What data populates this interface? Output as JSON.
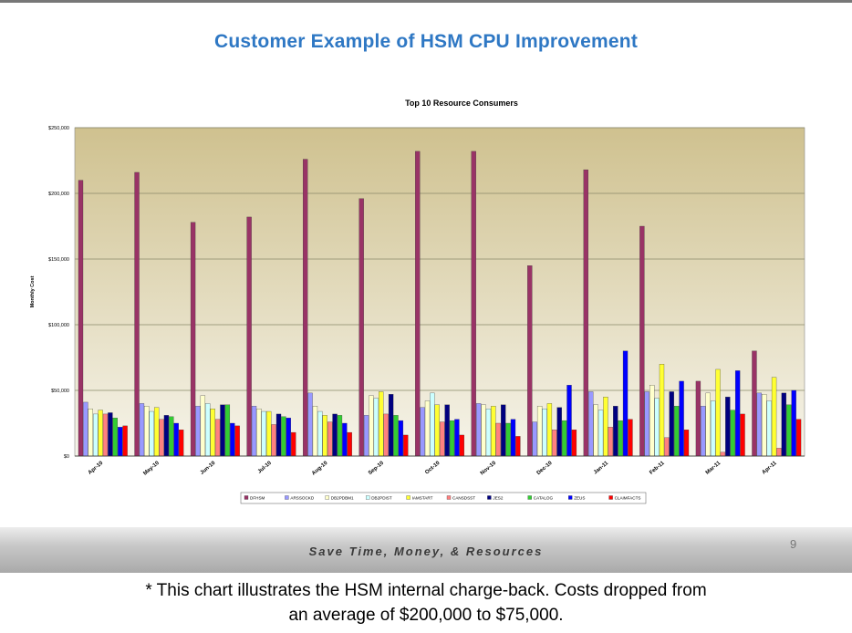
{
  "slide": {
    "title": "Customer Example of HSM CPU Improvement",
    "footer": "Save Time, Money, & Resources",
    "page_number": "9",
    "caption_line1": "* This chart illustrates the HSM internal charge-back. Costs dropped from",
    "caption_line2": "an average of $200,000 to $75,000."
  },
  "chart_data": {
    "type": "bar",
    "title": "Top 10 Resource Consumers",
    "xlabel": "",
    "ylabel": "Monthly Cost",
    "ylim": [
      0,
      250000
    ],
    "yticks": [
      "$0",
      "$50,000",
      "$100,000",
      "$150,000",
      "$200,000",
      "$250,000"
    ],
    "grid": true,
    "legend_position": "bottom",
    "categories": [
      "Apr-10",
      "May-10",
      "Jun-10",
      "Jul-10",
      "Aug-10",
      "Sep-10",
      "Oct-10",
      "Nov-10",
      "Dec-10",
      "Jan-11",
      "Feb-11",
      "Mar-11",
      "Apr-11"
    ],
    "series": [
      {
        "name": "DFHSM",
        "color": "#993366",
        "values": [
          210000,
          216000,
          178000,
          182000,
          226000,
          196000,
          232000,
          232000,
          145000,
          218000,
          175000,
          57000,
          80000
        ]
      },
      {
        "name": "ARSSOCKD",
        "color": "#9999ff",
        "values": [
          41000,
          40000,
          38000,
          38000,
          48000,
          31000,
          37000,
          40000,
          26000,
          49000,
          49000,
          38000,
          48000
        ]
      },
      {
        "name": "DB2PDBM1",
        "color": "#ffffcc",
        "values": [
          36000,
          38000,
          46000,
          36000,
          38000,
          46000,
          42000,
          39000,
          38000,
          39000,
          54000,
          48000,
          47000
        ]
      },
      {
        "name": "DB2PDIST",
        "color": "#ccffff",
        "values": [
          32000,
          34000,
          40000,
          34000,
          34000,
          44000,
          48000,
          36000,
          36000,
          35000,
          44000,
          42000,
          42000
        ]
      },
      {
        "name": "IAMSTART",
        "color": "#ffff33",
        "values": [
          35000,
          37000,
          36000,
          34000,
          31000,
          49000,
          39000,
          38000,
          40000,
          45000,
          70000,
          66000,
          60000
        ]
      },
      {
        "name": "CANSDSST",
        "color": "#ff8080",
        "values": [
          32000,
          28000,
          28000,
          24000,
          26000,
          32000,
          26000,
          25000,
          20000,
          22000,
          14000,
          3000,
          6000
        ]
      },
      {
        "name": "JES2",
        "color": "#000080",
        "values": [
          33000,
          31000,
          39000,
          32000,
          32000,
          47000,
          39000,
          39000,
          37000,
          38000,
          49000,
          45000,
          48000
        ]
      },
      {
        "name": "CATALOG",
        "color": "#33cc33",
        "values": [
          29000,
          30000,
          39000,
          30000,
          31000,
          31000,
          27000,
          25000,
          27000,
          27000,
          38000,
          35000,
          39000
        ]
      },
      {
        "name": "ZEUS",
        "color": "#0000ff",
        "values": [
          22000,
          25000,
          25000,
          29000,
          25000,
          27000,
          28000,
          28000,
          54000,
          80000,
          57000,
          65000,
          50000
        ]
      },
      {
        "name": "CLAIMFACTS",
        "color": "#ff0000",
        "values": [
          23000,
          20000,
          23000,
          18000,
          18000,
          16000,
          16000,
          15000,
          20000,
          28000,
          20000,
          32000,
          28000
        ]
      }
    ]
  }
}
